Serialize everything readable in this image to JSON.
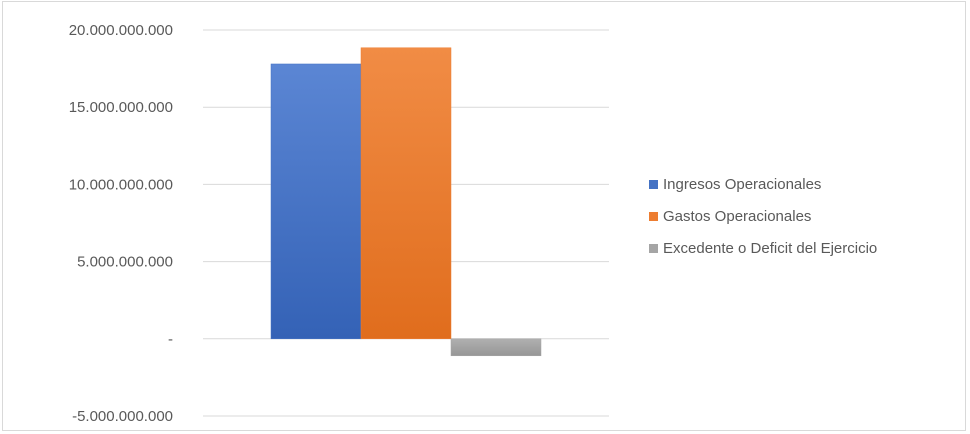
{
  "chart_data": {
    "type": "bar",
    "title": "",
    "xlabel": "",
    "ylabel": "",
    "ylim": [
      -5000000000,
      20000000000
    ],
    "y_ticks": [
      {
        "value": 20000000000,
        "label": "20.000.000.000"
      },
      {
        "value": 15000000000,
        "label": "15.000.000.000"
      },
      {
        "value": 10000000000,
        "label": "10.000.000.000"
      },
      {
        "value": 5000000000,
        "label": "5.000.000.000"
      },
      {
        "value": 0,
        "label": "-"
      },
      {
        "value": -5000000000,
        "label": "-5.000.000.000"
      }
    ],
    "grid": true,
    "legend_position": "right",
    "series": [
      {
        "name": "Ingresos Operacionales",
        "value": 17800000000,
        "color": "#4472C4"
      },
      {
        "name": "Gastos Operacionales",
        "value": 18850000000,
        "color": "#ED7D31"
      },
      {
        "name": "Excedente o Deficit del Ejercicio",
        "value": -1100000000,
        "color": "#A5A5A5"
      }
    ]
  }
}
